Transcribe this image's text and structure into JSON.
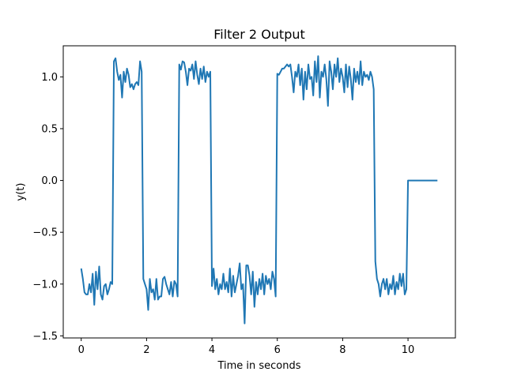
{
  "chart_data": {
    "type": "line",
    "title": "Filter 2 Output",
    "xlabel": "Time in seconds",
    "ylabel": "y(t)",
    "xlim": [
      -0.55,
      11.45
    ],
    "ylim": [
      -1.52,
      1.3
    ],
    "xticks": [
      0,
      2,
      4,
      6,
      8,
      10
    ],
    "xtick_labels": [
      "0",
      "2",
      "4",
      "6",
      "8",
      "10"
    ],
    "yticks": [
      -1.5,
      -1.0,
      -0.5,
      0.0,
      0.5,
      1.0
    ],
    "ytick_labels": [
      "−1.5",
      "−1.0",
      "−0.5",
      "0.0",
      "0.5",
      "1.0"
    ],
    "grid": false,
    "line_color": "#1f77b4",
    "series": [
      {
        "x": [
          0.0,
          0.05,
          0.1,
          0.15,
          0.2,
          0.25,
          0.3,
          0.35,
          0.4,
          0.45,
          0.5,
          0.55,
          0.6,
          0.65,
          0.7,
          0.75,
          0.8,
          0.85,
          0.9,
          0.95,
          1.0,
          1.05,
          1.1,
          1.15,
          1.2,
          1.25,
          1.3,
          1.35,
          1.4,
          1.45,
          1.5,
          1.55,
          1.6,
          1.65,
          1.7,
          1.75,
          1.8,
          1.85,
          1.9,
          1.95,
          2.0,
          2.05,
          2.1,
          2.15,
          2.2,
          2.25,
          2.3,
          2.35,
          2.4,
          2.45,
          2.5,
          2.55,
          2.6,
          2.65,
          2.7,
          2.75,
          2.8,
          2.85,
          2.9,
          2.95,
          3.0,
          3.05,
          3.1,
          3.15,
          3.2,
          3.25,
          3.3,
          3.35,
          3.4,
          3.45,
          3.5,
          3.55,
          3.6,
          3.65,
          3.7,
          3.75,
          3.8,
          3.85,
          3.9,
          3.95,
          4.0,
          4.05,
          4.1,
          4.15,
          4.2,
          4.25,
          4.3,
          4.35,
          4.4,
          4.45,
          4.5,
          4.55,
          4.6,
          4.65,
          4.7,
          4.75,
          4.8,
          4.85,
          4.9,
          4.95,
          5.0,
          5.05,
          5.1,
          5.15,
          5.2,
          5.25,
          5.3,
          5.35,
          5.4,
          5.45,
          5.5,
          5.55,
          5.6,
          5.65,
          5.7,
          5.75,
          5.8,
          5.85,
          5.9,
          5.95,
          6.0,
          6.05,
          6.1,
          6.15,
          6.2,
          6.25,
          6.3,
          6.35,
          6.4,
          6.45,
          6.5,
          6.55,
          6.6,
          6.65,
          6.7,
          6.75,
          6.8,
          6.85,
          6.9,
          6.95,
          7.0,
          7.05,
          7.1,
          7.15,
          7.2,
          7.25,
          7.3,
          7.35,
          7.4,
          7.45,
          7.5,
          7.55,
          7.6,
          7.65,
          7.7,
          7.75,
          7.8,
          7.85,
          7.9,
          7.95,
          8.0,
          8.05,
          8.1,
          8.15,
          8.2,
          8.25,
          8.3,
          8.35,
          8.4,
          8.45,
          8.5,
          8.55,
          8.6,
          8.65,
          8.7,
          8.75,
          8.8,
          8.85,
          8.9,
          8.95,
          9.0,
          9.05,
          9.1,
          9.15,
          9.2,
          9.25,
          9.3,
          9.35,
          9.4,
          9.45,
          9.5,
          9.55,
          9.6,
          9.65,
          9.7,
          9.75,
          9.8,
          9.85,
          9.9,
          9.95,
          10.0,
          10.05,
          10.9
        ],
        "y": [
          -0.85,
          -0.95,
          -1.08,
          -1.1,
          -1.1,
          -1.0,
          -1.08,
          -0.9,
          -1.2,
          -0.88,
          -1.05,
          -0.83,
          -1.1,
          -1.15,
          -1.02,
          -1.0,
          -1.1,
          -1.05,
          -0.98,
          -1.0,
          1.15,
          1.18,
          1.05,
          0.97,
          1.02,
          0.8,
          1.05,
          0.95,
          1.08,
          1.02,
          0.9,
          0.93,
          0.88,
          0.93,
          0.95,
          0.92,
          1.15,
          1.05,
          -0.95,
          -1.0,
          -1.05,
          -1.25,
          -0.95,
          -1.08,
          -1.05,
          -1.15,
          -0.95,
          -1.15,
          -1.12,
          -1.12,
          -0.95,
          -0.93,
          -1.0,
          -1.05,
          -1.1,
          -0.98,
          -1.12,
          -0.97,
          -1.0,
          -1.12,
          1.12,
          1.07,
          1.15,
          1.14,
          1.05,
          0.92,
          1.08,
          1.06,
          1.12,
          0.98,
          1.15,
          1.02,
          0.93,
          1.08,
          0.98,
          1.1,
          0.95,
          1.05,
          1.0,
          1.05,
          -1.02,
          -0.85,
          -1.05,
          -0.95,
          -1.1,
          -1.0,
          -1.05,
          -0.9,
          -1.05,
          -0.98,
          -1.08,
          -0.85,
          -1.12,
          -0.92,
          -1.08,
          -1.0,
          -0.92,
          -0.8,
          -1.05,
          -1.0,
          -1.38,
          -0.82,
          -0.82,
          -0.92,
          -1.1,
          -0.88,
          -1.22,
          -0.98,
          -1.1,
          -0.95,
          -1.05,
          -0.9,
          -1.1,
          -0.92,
          -1.0,
          -0.95,
          -1.05,
          -0.88,
          -0.95,
          -1.12,
          1.03,
          1.02,
          1.05,
          1.08,
          1.08,
          1.1,
          1.12,
          1.1,
          1.12,
          1.0,
          0.85,
          1.05,
          1.0,
          1.12,
          0.92,
          1.08,
          0.78,
          1.05,
          0.88,
          1.12,
          0.98,
          1.0,
          0.82,
          1.15,
          0.95,
          1.2,
          0.8,
          1.05,
          1.0,
          1.12,
          0.98,
          0.72,
          1.15,
          1.05,
          0.88,
          1.12,
          1.0,
          1.18,
          0.95,
          1.08,
          1.0,
          0.85,
          1.12,
          0.9,
          1.1,
          0.98,
          0.78,
          1.08,
          0.95,
          1.05,
          0.93,
          1.15,
          0.92,
          1.05,
          1.0,
          1.02,
          0.97,
          1.05,
          1.0,
          0.88,
          -0.78,
          -0.95,
          -1.0,
          -1.12,
          -1.0,
          -0.95,
          -1.05,
          -0.95,
          -1.1,
          -1.0,
          -1.05,
          -0.92,
          -1.1,
          -0.98,
          -1.05,
          -0.9,
          -1.02,
          -0.9,
          -1.1,
          -1.05,
          0.0,
          0.0,
          0.0
        ]
      }
    ]
  }
}
